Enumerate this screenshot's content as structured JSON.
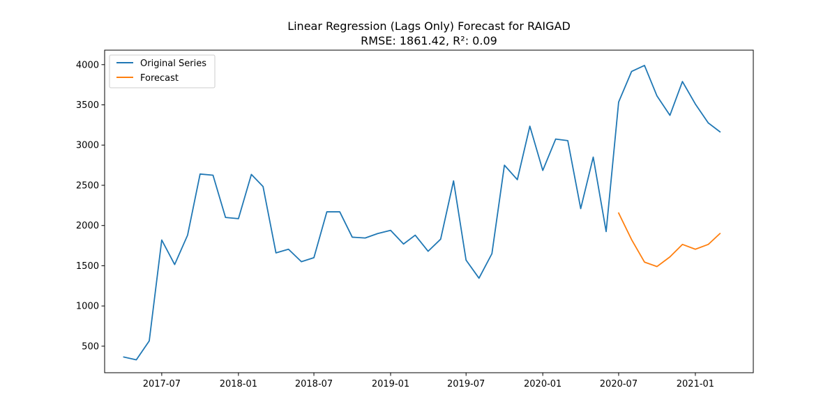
{
  "chart_data": {
    "type": "line",
    "title": "Linear Regression (Lags Only) Forecast for RAIGAD",
    "subtitle": "RMSE: 1861.42, R²: 0.09",
    "xlabel": "",
    "ylabel": "",
    "xlim": [
      "2017-02-14",
      "2021-05-20"
    ],
    "ylim": [
      170,
      4180
    ],
    "x_ticks": [
      "2017-07",
      "2018-01",
      "2018-07",
      "2019-01",
      "2019-07",
      "2020-01",
      "2020-07",
      "2021-01"
    ],
    "y_ticks": [
      500,
      1000,
      1500,
      2000,
      2500,
      3000,
      3500,
      4000
    ],
    "grid": false,
    "legend": "top-left",
    "series": [
      {
        "name": "Original Series",
        "color": "#1f77b4",
        "points": [
          [
            "2017-04-01",
            365
          ],
          [
            "2017-05-01",
            330
          ],
          [
            "2017-06-01",
            565
          ],
          [
            "2017-07-01",
            1820
          ],
          [
            "2017-08-01",
            1515
          ],
          [
            "2017-09-01",
            1880
          ],
          [
            "2017-10-01",
            2640
          ],
          [
            "2017-11-01",
            2625
          ],
          [
            "2017-12-01",
            2100
          ],
          [
            "2018-01-01",
            2085
          ],
          [
            "2018-02-01",
            2635
          ],
          [
            "2018-03-01",
            2485
          ],
          [
            "2018-04-01",
            1660
          ],
          [
            "2018-05-01",
            1705
          ],
          [
            "2018-06-01",
            1550
          ],
          [
            "2018-07-01",
            1600
          ],
          [
            "2018-08-01",
            2170
          ],
          [
            "2018-09-01",
            2170
          ],
          [
            "2018-10-01",
            1855
          ],
          [
            "2018-11-01",
            1845
          ],
          [
            "2018-12-01",
            1900
          ],
          [
            "2019-01-01",
            1940
          ],
          [
            "2019-02-01",
            1770
          ],
          [
            "2019-03-01",
            1880
          ],
          [
            "2019-04-01",
            1680
          ],
          [
            "2019-05-01",
            1830
          ],
          [
            "2019-06-01",
            2555
          ],
          [
            "2019-07-01",
            1570
          ],
          [
            "2019-08-01",
            1345
          ],
          [
            "2019-09-01",
            1650
          ],
          [
            "2019-10-01",
            2750
          ],
          [
            "2019-11-01",
            2570
          ],
          [
            "2019-12-01",
            3235
          ],
          [
            "2020-01-01",
            2685
          ],
          [
            "2020-02-01",
            3075
          ],
          [
            "2020-03-01",
            3055
          ],
          [
            "2020-04-01",
            2210
          ],
          [
            "2020-05-01",
            2850
          ],
          [
            "2020-06-01",
            1925
          ],
          [
            "2020-07-01",
            3535
          ],
          [
            "2020-08-01",
            3915
          ],
          [
            "2020-09-01",
            3990
          ],
          [
            "2020-10-01",
            3610
          ],
          [
            "2020-11-01",
            3370
          ],
          [
            "2020-12-01",
            3790
          ],
          [
            "2021-01-01",
            3510
          ],
          [
            "2021-02-01",
            3275
          ],
          [
            "2021-03-01",
            3165
          ]
        ]
      },
      {
        "name": "Forecast",
        "color": "#ff7f0e",
        "points": [
          [
            "2020-07-01",
            2155
          ],
          [
            "2020-08-01",
            1825
          ],
          [
            "2020-09-01",
            1545
          ],
          [
            "2020-10-01",
            1490
          ],
          [
            "2020-11-01",
            1610
          ],
          [
            "2020-12-01",
            1765
          ],
          [
            "2021-01-01",
            1705
          ],
          [
            "2021-02-01",
            1765
          ],
          [
            "2021-03-01",
            1900
          ]
        ]
      }
    ]
  }
}
